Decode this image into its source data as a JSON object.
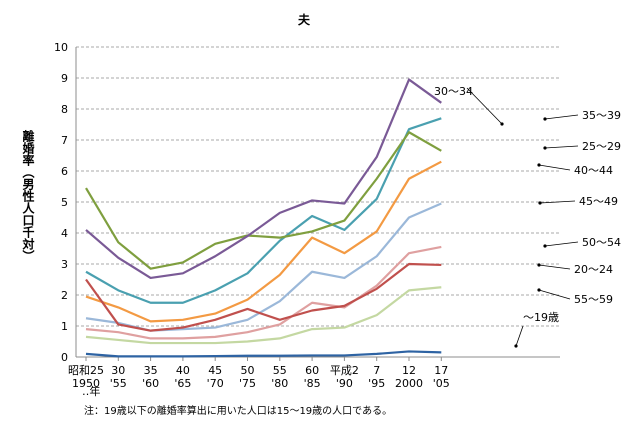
{
  "chart_data": {
    "type": "line",
    "title": "夫",
    "ylabel": "離婚率（男性人口千対）",
    "xlabel": "年",
    "x_unit_note": "‥年",
    "footnote": "注：19歳以下の離婚率算出に用いた人口は15～19歳の人口である。",
    "ylim": [
      0,
      10
    ],
    "yticks": [
      "0",
      "1",
      "2",
      "3",
      "4",
      "5",
      "6",
      "7",
      "8",
      "9",
      "10"
    ],
    "grid": "horizontal dashed",
    "categories_era": [
      "昭和25",
      "30",
      "35",
      "40",
      "45",
      "50",
      "55",
      "60",
      "平成2",
      "7",
      "12",
      "17"
    ],
    "categories_year": [
      "1950",
      "'55",
      "'60",
      "'65",
      "'70",
      "'75",
      "'80",
      "'85",
      "'90",
      "'95",
      "2000",
      "'05"
    ],
    "series": [
      {
        "name": "～19歳",
        "color": "#2e63a3",
        "values": [
          0.1,
          0.02,
          0.02,
          0.02,
          0.03,
          0.04,
          0.04,
          0.05,
          0.05,
          0.1,
          0.18,
          0.15
        ]
      },
      {
        "name": "20～24",
        "color": "#c0504d",
        "values": [
          2.5,
          1.05,
          0.85,
          0.95,
          1.2,
          1.55,
          1.2,
          1.5,
          1.65,
          2.2,
          3.0,
          2.97
        ]
      },
      {
        "name": "25～29",
        "color": "#7f9f3f",
        "values": [
          5.45,
          3.7,
          2.85,
          3.05,
          3.65,
          3.92,
          3.85,
          4.05,
          4.4,
          5.75,
          7.25,
          6.65
        ]
      },
      {
        "name": "30～34",
        "color": "#7a5a96",
        "values": [
          4.1,
          3.2,
          2.55,
          2.7,
          3.25,
          3.9,
          4.65,
          5.05,
          4.95,
          6.45,
          8.95,
          8.2
        ]
      },
      {
        "name": "35～39",
        "color": "#4aa0b0",
        "values": [
          2.75,
          2.15,
          1.75,
          1.75,
          2.15,
          2.7,
          3.75,
          4.55,
          4.1,
          5.1,
          7.35,
          7.7
        ]
      },
      {
        "name": "40～44",
        "color": "#f39a43",
        "values": [
          1.95,
          1.6,
          1.15,
          1.2,
          1.4,
          1.85,
          2.65,
          3.85,
          3.35,
          4.05,
          5.75,
          6.3
        ]
      },
      {
        "name": "45～49",
        "color": "#9bb8d9",
        "values": [
          1.25,
          1.1,
          0.85,
          0.9,
          0.95,
          1.2,
          1.8,
          2.75,
          2.55,
          3.25,
          4.5,
          4.95
        ]
      },
      {
        "name": "50～54",
        "color": "#dfa0a0",
        "values": [
          0.9,
          0.8,
          0.6,
          0.6,
          0.65,
          0.8,
          1.05,
          1.75,
          1.6,
          2.3,
          3.35,
          3.55
        ]
      },
      {
        "name": "55～59",
        "color": "#c4d8a2",
        "values": [
          0.65,
          0.55,
          0.45,
          0.45,
          0.45,
          0.5,
          0.6,
          0.9,
          0.95,
          1.35,
          2.15,
          2.25
        ]
      }
    ]
  }
}
